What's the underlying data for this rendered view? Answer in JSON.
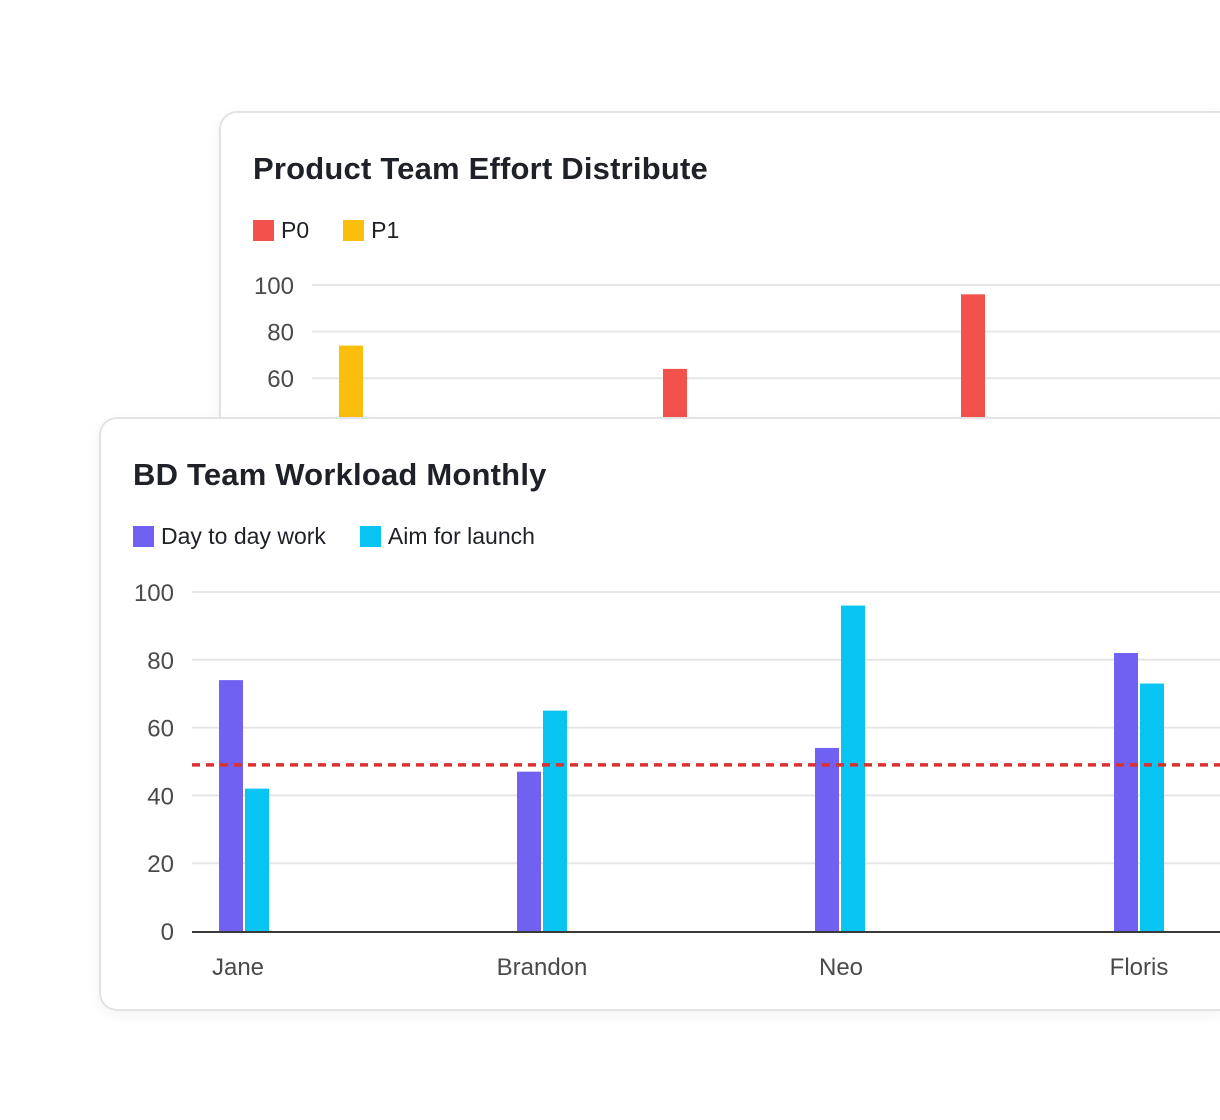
{
  "chart_data": [
    {
      "type": "bar",
      "title": "Product Team Effort Distribute",
      "series": [
        {
          "name": "P0",
          "color": "#f2514c",
          "values": [
            null,
            64,
            96,
            null
          ]
        },
        {
          "name": "P1",
          "color": "#f9bf0c",
          "values": [
            74,
            null,
            null,
            null
          ]
        }
      ],
      "ylim": [
        0,
        100
      ],
      "yticks": [
        "100",
        "80",
        "60"
      ],
      "grid": true,
      "legend_position": "top-left"
    },
    {
      "type": "bar",
      "title": "BD Team Workload Monthly",
      "categories": [
        "Jane",
        "Brandon",
        "Neo",
        "Floris"
      ],
      "series": [
        {
          "name": "Day to day work",
          "color": "#7061f3",
          "values": [
            74,
            47,
            54,
            82
          ]
        },
        {
          "name": "Aim for launch",
          "color": "#08c4f2",
          "values": [
            42,
            65,
            96,
            73
          ]
        }
      ],
      "ylim": [
        0,
        100
      ],
      "yticks": [
        "100",
        "80",
        "60",
        "40",
        "20",
        "0"
      ],
      "reference_line": {
        "value": 49,
        "color": "#d93030",
        "style": "dashed"
      },
      "grid": true,
      "legend_position": "top-left"
    }
  ]
}
